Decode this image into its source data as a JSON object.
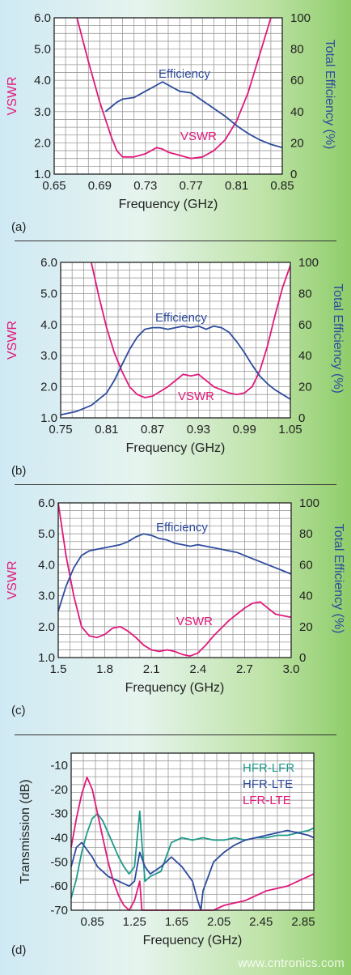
{
  "colors": {
    "vswr": "#e2187a",
    "efficiency": "#2e4c9e",
    "hfr_lfr": "#1e9a8c",
    "hfr_lte": "#2e4c9e",
    "lfr_lte": "#e2187a",
    "grid": "#9a9a9a",
    "axis": "#222222"
  },
  "watermark": "www.cntronics.com",
  "chart_data": [
    {
      "type": "line",
      "panel_label": "(a)",
      "xlabel": "Frequency (GHz)",
      "ylabel": "VSWR",
      "y2label": "Total Efficiency (%)",
      "xlim": [
        0.65,
        0.85
      ],
      "ylim": [
        1.0,
        6.0
      ],
      "y2lim": [
        0,
        100
      ],
      "xticks": [
        "0.65",
        "0.69",
        "0.73",
        "0.77",
        "0.81",
        "0.85"
      ],
      "yticks": [
        "1.0",
        "2.0",
        "3.0",
        "4.0",
        "5.0",
        "6.0"
      ],
      "y2ticks": [
        "0",
        "20",
        "40",
        "60",
        "80",
        "100"
      ],
      "grid": true,
      "annotations": [
        "Efficiency",
        "VSWR"
      ],
      "series": [
        {
          "name": "VSWR",
          "axis": "left",
          "x": [
            0.67,
            0.68,
            0.69,
            0.7,
            0.705,
            0.71,
            0.72,
            0.73,
            0.74,
            0.745,
            0.75,
            0.76,
            0.77,
            0.78,
            0.79,
            0.8,
            0.81,
            0.82,
            0.83,
            0.84
          ],
          "y": [
            6.0,
            4.6,
            3.3,
            2.2,
            1.75,
            1.55,
            1.55,
            1.65,
            1.85,
            1.8,
            1.7,
            1.6,
            1.5,
            1.55,
            1.75,
            2.1,
            2.7,
            3.6,
            4.8,
            6.0
          ]
        },
        {
          "name": "Efficiency",
          "axis": "right",
          "x": [
            0.695,
            0.7,
            0.705,
            0.71,
            0.72,
            0.73,
            0.74,
            0.745,
            0.75,
            0.76,
            0.77,
            0.78,
            0.79,
            0.8,
            0.81,
            0.82,
            0.83,
            0.84,
            0.85
          ],
          "y": [
            40,
            43,
            46,
            48,
            49,
            53,
            57,
            59,
            57,
            53,
            52,
            47,
            42,
            37,
            31,
            26,
            22,
            19,
            17
          ]
        }
      ]
    },
    {
      "type": "line",
      "panel_label": "(b)",
      "xlabel": "Frequency (GHz)",
      "ylabel": "VSWR",
      "y2label": "Total Efficiency (%)",
      "xlim": [
        0.75,
        1.05
      ],
      "ylim": [
        1.0,
        6.0
      ],
      "y2lim": [
        0,
        100
      ],
      "xticks": [
        "0.75",
        "0.81",
        "0.87",
        "0.93",
        "0.99",
        "1.05"
      ],
      "yticks": [
        "1.0",
        "2.0",
        "3.0",
        "4.0",
        "5.0",
        "6.0"
      ],
      "y2ticks": [
        "0",
        "20",
        "40",
        "60",
        "80",
        "100"
      ],
      "grid": true,
      "annotations": [
        "Efficiency",
        "VSWR"
      ],
      "series": [
        {
          "name": "VSWR",
          "axis": "left",
          "x": [
            0.79,
            0.8,
            0.81,
            0.82,
            0.83,
            0.84,
            0.85,
            0.86,
            0.87,
            0.88,
            0.89,
            0.9,
            0.91,
            0.92,
            0.93,
            0.94,
            0.95,
            0.96,
            0.97,
            0.98,
            0.99,
            1.0,
            1.01,
            1.02,
            1.03,
            1.04,
            1.05
          ],
          "y": [
            6.0,
            4.9,
            3.9,
            3.1,
            2.5,
            2.0,
            1.75,
            1.65,
            1.7,
            1.85,
            2.0,
            2.2,
            2.4,
            2.35,
            2.4,
            2.2,
            2.0,
            1.9,
            1.8,
            1.75,
            1.8,
            2.0,
            2.5,
            3.3,
            4.3,
            5.2,
            5.9
          ]
        },
        {
          "name": "Efficiency",
          "axis": "right",
          "x": [
            0.75,
            0.77,
            0.79,
            0.81,
            0.82,
            0.83,
            0.84,
            0.85,
            0.86,
            0.87,
            0.88,
            0.89,
            0.9,
            0.91,
            0.92,
            0.93,
            0.94,
            0.95,
            0.96,
            0.97,
            0.98,
            0.99,
            1.0,
            1.01,
            1.02,
            1.03,
            1.04,
            1.05
          ],
          "y": [
            2,
            4,
            8,
            16,
            24,
            34,
            44,
            52,
            57,
            58,
            58,
            57,
            58,
            59,
            58,
            59,
            57,
            59,
            58,
            55,
            49,
            42,
            34,
            27,
            22,
            18,
            15,
            12
          ]
        }
      ]
    },
    {
      "type": "line",
      "panel_label": "(c)",
      "xlabel": "Frequency (GHz)",
      "ylabel": "VSWR",
      "y2label": "Total Efficiency (%)",
      "xlim": [
        1.5,
        3.0
      ],
      "ylim": [
        1.0,
        6.0
      ],
      "y2lim": [
        0,
        100
      ],
      "xticks": [
        "1.5",
        "1.8",
        "2.1",
        "2.4",
        "2.7",
        "3.0"
      ],
      "yticks": [
        "1.0",
        "2.0",
        "3.0",
        "4.0",
        "5.0",
        "6.0"
      ],
      "y2ticks": [
        "0",
        "20",
        "40",
        "60",
        "80",
        "100"
      ],
      "grid": true,
      "annotations": [
        "Efficiency",
        "VSWR"
      ],
      "series": [
        {
          "name": "VSWR",
          "axis": "left",
          "x": [
            1.5,
            1.55,
            1.6,
            1.65,
            1.7,
            1.75,
            1.8,
            1.85,
            1.9,
            1.95,
            2.0,
            2.05,
            2.1,
            2.15,
            2.2,
            2.25,
            2.3,
            2.35,
            2.4,
            2.45,
            2.5,
            2.55,
            2.6,
            2.65,
            2.7,
            2.75,
            2.8,
            2.85,
            2.9,
            2.95,
            3.0
          ],
          "y": [
            6.0,
            4.3,
            3.0,
            2.0,
            1.7,
            1.65,
            1.75,
            1.95,
            2.0,
            1.85,
            1.65,
            1.4,
            1.25,
            1.2,
            1.25,
            1.2,
            1.1,
            1.05,
            1.15,
            1.4,
            1.7,
            1.95,
            2.2,
            2.4,
            2.6,
            2.75,
            2.8,
            2.6,
            2.4,
            2.35,
            2.3
          ]
        },
        {
          "name": "Efficiency",
          "axis": "right",
          "x": [
            1.5,
            1.55,
            1.6,
            1.65,
            1.7,
            1.75,
            1.8,
            1.85,
            1.9,
            1.95,
            2.0,
            2.05,
            2.1,
            2.15,
            2.2,
            2.25,
            2.3,
            2.35,
            2.4,
            2.45,
            2.5,
            2.55,
            2.6,
            2.65,
            2.7,
            2.75,
            2.8,
            2.85,
            2.9,
            2.95,
            3.0
          ],
          "y": [
            30,
            46,
            58,
            66,
            69,
            70,
            71,
            72,
            73,
            75,
            78,
            80,
            79,
            77,
            76,
            74,
            73,
            72,
            73,
            72,
            71,
            70,
            69,
            68,
            66,
            64,
            62,
            60,
            58,
            56,
            54
          ]
        }
      ]
    },
    {
      "type": "line",
      "panel_label": "(d)",
      "xlabel": "Frequency (GHz)",
      "ylabel": "Transmission (dB)",
      "xlim": [
        0.65,
        2.95
      ],
      "ylim": [
        -70,
        -5
      ],
      "xticks": [
        "0.85",
        "1.25",
        "1.65",
        "2.05",
        "2.45",
        "2.85"
      ],
      "xtick_values": [
        0.85,
        1.25,
        1.65,
        2.05,
        2.45,
        2.85
      ],
      "yticks": [
        "-10",
        "-20",
        "-30",
        "-40",
        "-50",
        "-60",
        "-70"
      ],
      "ytick_values": [
        -10,
        -20,
        -30,
        -40,
        -50,
        -60,
        -70
      ],
      "grid": true,
      "legend": "top-right",
      "series": [
        {
          "name": "HFR-LFR",
          "color_key": "hfr_lfr",
          "x": [
            0.65,
            0.7,
            0.75,
            0.8,
            0.85,
            0.9,
            0.95,
            1.0,
            1.05,
            1.1,
            1.15,
            1.2,
            1.25,
            1.3,
            1.32,
            1.35,
            1.4,
            1.5,
            1.6,
            1.7,
            1.8,
            1.9,
            2.0,
            2.1,
            2.2,
            2.3,
            2.4,
            2.5,
            2.6,
            2.7,
            2.8,
            2.9,
            2.95
          ],
          "y": [
            -65,
            -57,
            -46,
            -38,
            -32,
            -30,
            -33,
            -38,
            -43,
            -48,
            -52,
            -55,
            -52,
            -29,
            -42,
            -58,
            -56,
            -54,
            -42,
            -40,
            -41,
            -40,
            -41,
            -41,
            -40,
            -41,
            -40,
            -40,
            -39,
            -39,
            -38,
            -37,
            -36
          ]
        },
        {
          "name": "HFR-LTE",
          "color_key": "hfr_lte",
          "x": [
            0.65,
            0.7,
            0.75,
            0.8,
            0.85,
            0.9,
            0.95,
            1.0,
            1.05,
            1.1,
            1.15,
            1.2,
            1.25,
            1.3,
            1.35,
            1.4,
            1.5,
            1.6,
            1.7,
            1.8,
            1.85,
            1.88,
            1.9,
            1.95,
            2.0,
            2.1,
            2.2,
            2.3,
            2.4,
            2.5,
            2.6,
            2.7,
            2.8,
            2.9,
            2.95
          ],
          "y": [
            -52,
            -44,
            -42,
            -45,
            -48,
            -52,
            -54,
            -56,
            -57,
            -58,
            -59,
            -60,
            -58,
            -46,
            -52,
            -55,
            -52,
            -48,
            -52,
            -58,
            -66,
            -70,
            -62,
            -56,
            -50,
            -46,
            -43,
            -41,
            -40,
            -39,
            -38,
            -37,
            -38,
            -39,
            -40
          ]
        },
        {
          "name": "LFR-LTE",
          "color_key": "lfr_lte",
          "x": [
            0.65,
            0.7,
            0.75,
            0.8,
            0.85,
            0.9,
            0.95,
            1.0,
            1.05,
            1.1,
            1.15,
            1.2,
            1.25,
            1.3,
            1.32,
            1.34,
            2.0,
            2.1,
            2.2,
            2.3,
            2.4,
            2.5,
            2.6,
            2.7,
            2.8,
            2.9,
            2.95
          ],
          "y": [
            -44,
            -32,
            -22,
            -15,
            -20,
            -30,
            -40,
            -50,
            -58,
            -64,
            -68,
            -70,
            -66,
            -58,
            -70,
            -70,
            -70,
            -68,
            -67,
            -66,
            -64,
            -62,
            -61,
            -60,
            -58,
            -56,
            -55
          ]
        }
      ]
    }
  ]
}
